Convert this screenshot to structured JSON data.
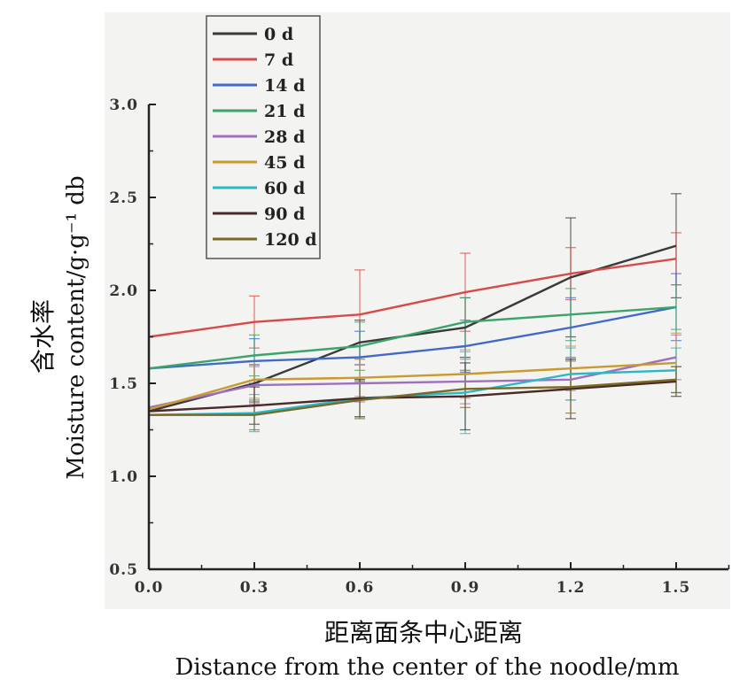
{
  "chart_data": {
    "type": "line",
    "x": [
      0.0,
      0.3,
      0.6,
      0.9,
      1.2,
      1.5
    ],
    "x_tick_labels": [
      "0.0",
      "0.3",
      "0.6",
      "0.9",
      "1.2",
      "1.5"
    ],
    "y_tick_labels": [
      "0.5",
      "1.0",
      "1.5",
      "2.0",
      "2.5",
      "3.0"
    ],
    "xlim": [
      0,
      1.65
    ],
    "ylim": [
      0.5,
      3.0
    ],
    "xlabel_cn": "距离面条中心距离",
    "xlabel": "Distance from the center of the noodle/mm",
    "ylabel_cn": "含水率",
    "ylabel": "Moisture content/g·g⁻¹ db",
    "legend_position": "top-left",
    "error_bars": true,
    "series": [
      {
        "name": "0 d",
        "color": "#3a3a3a",
        "values": [
          1.35,
          1.5,
          1.72,
          1.8,
          2.07,
          2.24
        ],
        "err": [
          0.02,
          0.1,
          0.12,
          0.16,
          0.32,
          0.28
        ]
      },
      {
        "name": "7 d",
        "color": "#d84a4a",
        "values": [
          1.75,
          1.83,
          1.87,
          1.99,
          2.09,
          2.17
        ],
        "err": [
          0.02,
          0.14,
          0.24,
          0.21,
          0.14,
          0.14
        ]
      },
      {
        "name": "14 d",
        "color": "#4169c8",
        "values": [
          1.58,
          1.62,
          1.64,
          1.7,
          1.8,
          1.91
        ],
        "err": [
          0.02,
          0.12,
          0.14,
          0.14,
          0.16,
          0.18
        ]
      },
      {
        "name": "21 d",
        "color": "#3aa46a",
        "values": [
          1.58,
          1.65,
          1.7,
          1.83,
          1.87,
          1.91
        ],
        "err": [
          0.02,
          0.11,
          0.13,
          0.13,
          0.14,
          0.12
        ]
      },
      {
        "name": "28 d",
        "color": "#a070c0",
        "values": [
          1.37,
          1.49,
          1.5,
          1.51,
          1.52,
          1.64
        ],
        "err": [
          0.02,
          0.1,
          0.1,
          0.12,
          0.11,
          0.12
        ]
      },
      {
        "name": "45 d",
        "color": "#c99a2e",
        "values": [
          1.36,
          1.52,
          1.53,
          1.55,
          1.58,
          1.61
        ],
        "err": [
          0.02,
          0.1,
          0.1,
          0.13,
          0.12,
          0.16
        ]
      },
      {
        "name": "60 d",
        "color": "#2ab8c8",
        "values": [
          1.33,
          1.34,
          1.42,
          1.45,
          1.55,
          1.57
        ],
        "err": [
          0.02,
          0.1,
          0.1,
          0.22,
          0.14,
          0.12
        ]
      },
      {
        "name": "90 d",
        "color": "#4a2a2a",
        "values": [
          1.35,
          1.38,
          1.42,
          1.43,
          1.47,
          1.51
        ],
        "err": [
          0.02,
          0.1,
          0.1,
          0.18,
          0.16,
          0.08
        ]
      },
      {
        "name": "120 d",
        "color": "#7a6a28",
        "values": [
          1.33,
          1.33,
          1.41,
          1.47,
          1.48,
          1.52
        ],
        "err": [
          0.02,
          0.08,
          0.1,
          0.1,
          0.14,
          0.07
        ]
      }
    ]
  }
}
